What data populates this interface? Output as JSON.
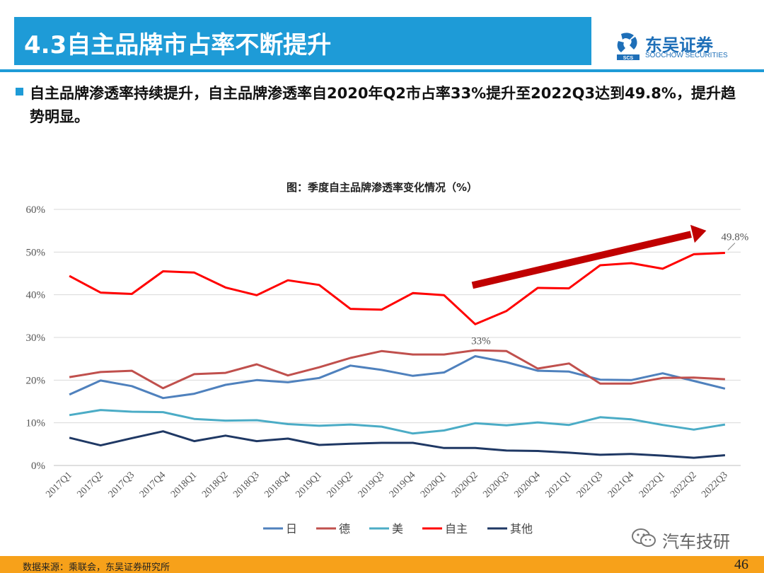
{
  "header": {
    "title": "4.3自主品牌市占率不断提升",
    "logo_cn": "东吴证券",
    "logo_en": "SOOCHOW SECURITIES",
    "logo_mark": "SCS"
  },
  "bullet": {
    "text": "自主品牌渗透率持续提升，自主品牌渗透率自2020年Q2市占率33%提升至2022Q3达到49.8%，提升趋势明显。"
  },
  "chart_title": "图：季度自主品牌渗透率变化情况（%）",
  "chart_data": {
    "type": "line",
    "title": "图：季度自主品牌渗透率变化情况（%）",
    "categories": [
      "2017Q1",
      "2017Q2",
      "2017Q3",
      "2017Q4",
      "2018Q1",
      "2018Q2",
      "2018Q3",
      "2018Q4",
      "2019Q1",
      "2019Q2",
      "2019Q3",
      "2019Q4",
      "2020Q1",
      "2020Q2",
      "2020Q3",
      "2020Q4",
      "2021Q1",
      "2021Q3",
      "2021Q4",
      "2022Q1",
      "2022Q2",
      "2022Q3"
    ],
    "y_ticks": [
      "0%",
      "10%",
      "20%",
      "30%",
      "40%",
      "50%",
      "60%"
    ],
    "ylim": [
      0,
      60
    ],
    "grid": true,
    "legend_position": "bottom",
    "series": [
      {
        "name": "日",
        "color": "#4f81bd",
        "values": [
          16.6,
          19.9,
          18.6,
          15.8,
          16.8,
          18.9,
          20.0,
          19.5,
          20.5,
          23.4,
          22.4,
          21.0,
          21.8,
          25.6,
          24.2,
          22.2,
          22.0,
          20.1,
          20.0,
          21.6,
          19.8,
          18.0
        ]
      },
      {
        "name": "德",
        "color": "#c0504d",
        "values": [
          20.7,
          21.9,
          22.2,
          18.1,
          21.4,
          21.7,
          23.7,
          21.1,
          23.0,
          25.2,
          26.8,
          26.0,
          26.0,
          27.0,
          26.8,
          22.7,
          23.9,
          19.2,
          19.2,
          20.5,
          20.6,
          20.2
        ]
      },
      {
        "name": "美",
        "color": "#4bacc6",
        "values": [
          11.8,
          13.0,
          12.6,
          12.5,
          10.9,
          10.5,
          10.6,
          9.7,
          9.3,
          9.6,
          9.1,
          7.5,
          8.2,
          9.9,
          9.4,
          10.1,
          9.5,
          11.3,
          10.8,
          9.5,
          8.4,
          9.6
        ]
      },
      {
        "name": "自主",
        "color": "#ff0000",
        "values": [
          44.4,
          40.5,
          40.2,
          45.5,
          45.2,
          41.7,
          39.9,
          43.4,
          42.3,
          36.7,
          36.5,
          40.4,
          39.9,
          33.1,
          36.2,
          41.6,
          41.5,
          46.9,
          47.4,
          46.1,
          49.5,
          49.8
        ]
      },
      {
        "name": "其他",
        "color": "#1f3864",
        "values": [
          6.5,
          4.7,
          6.4,
          8.0,
          5.7,
          7.0,
          5.7,
          6.3,
          4.8,
          5.1,
          5.3,
          5.3,
          4.1,
          4.1,
          3.5,
          3.4,
          3.0,
          2.5,
          2.7,
          2.3,
          1.8,
          2.4
        ]
      }
    ],
    "annotations": [
      {
        "text": "33%",
        "category": "2020Q2"
      },
      {
        "text": "49.8%",
        "category": "2022Q3"
      }
    ]
  },
  "footer": {
    "source": "数据来源：乘联会，东吴证券研究所",
    "page": "46"
  },
  "watermark": {
    "text": "汽车技研",
    "icon": "wechat-icon"
  },
  "colors": {
    "accent": "#1e9bd7",
    "footer": "#f7a11a",
    "trend_arrow": "#c00000"
  }
}
